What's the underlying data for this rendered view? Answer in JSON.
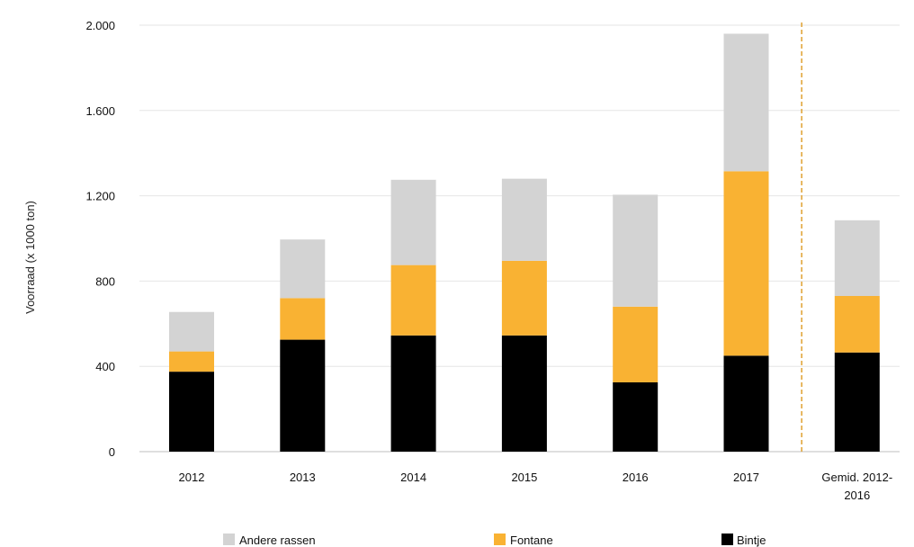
{
  "chart_data": {
    "type": "bar",
    "stacked": true,
    "categories": [
      "2012",
      "2013",
      "2014",
      "2015",
      "2016",
      "2017",
      "Gemid. 2012-2016"
    ],
    "series": [
      {
        "name": "Bintje",
        "color": "#000000",
        "values": [
          375,
          525,
          545,
          545,
          325,
          450,
          465
        ]
      },
      {
        "name": "Fontane",
        "color": "#f9b233",
        "values": [
          95,
          195,
          330,
          350,
          355,
          865,
          265
        ]
      },
      {
        "name": "Andere rassen",
        "color": "#d3d3d3",
        "values": [
          185,
          275,
          400,
          385,
          525,
          645,
          355
        ]
      }
    ],
    "legend_order": [
      "Andere rassen",
      "Fontane",
      "Bintje"
    ],
    "legend_position": "bottom",
    "ylabel": "Voorraad (x 1000 ton)",
    "xlabel": "",
    "ylim": [
      0,
      2000
    ],
    "yticks": [
      0,
      400,
      800,
      1200,
      1600,
      2000
    ],
    "ytick_labels": [
      "0",
      "400",
      "800",
      "1.200",
      "1.600",
      "2.000"
    ],
    "grid": true,
    "separator": {
      "type": "dashed-vertical-line",
      "between": [
        "2017",
        "Gemid. 2012-2016"
      ],
      "color": "#e0a030"
    },
    "category_label_lines": [
      [
        "2012"
      ],
      [
        "2013"
      ],
      [
        "2014"
      ],
      [
        "2015"
      ],
      [
        "2016"
      ],
      [
        "2017"
      ],
      [
        "Gemid. 2012-",
        "2016"
      ]
    ]
  }
}
